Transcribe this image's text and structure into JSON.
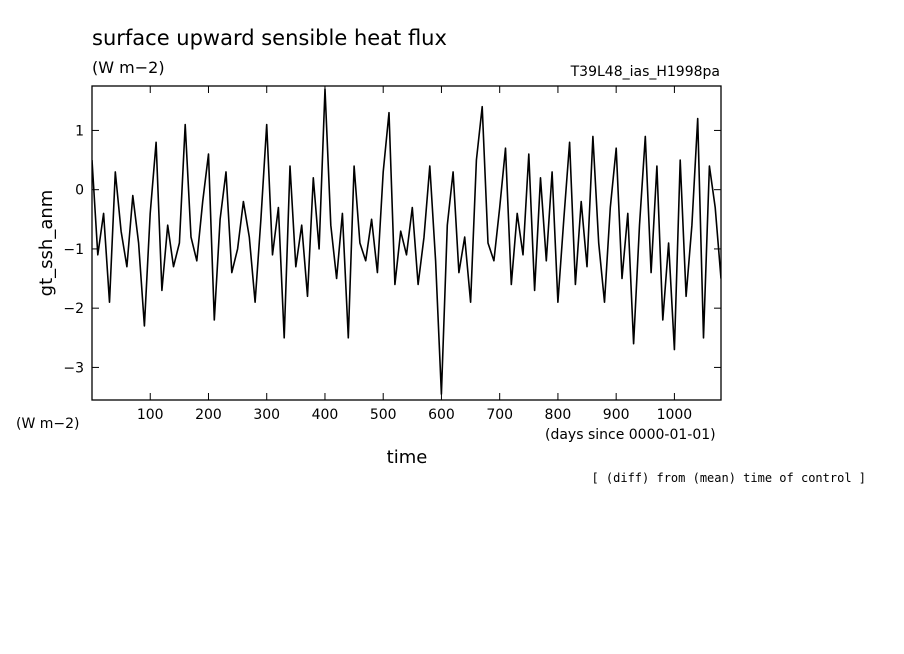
{
  "chart_data": {
    "type": "line",
    "title": "surface upward sensible heat flux",
    "units": "(W m−2)",
    "run_label": "T39L48_ias_H1998pa",
    "ylabel": "gt_ssh_anm",
    "ylabel_units": "(W m−2)",
    "xlabel": "time",
    "xlabel_units": "(days since 0000-01-01)",
    "footnote": "[ (diff) from (mean) time of control ]",
    "xlim": [
      0,
      1080
    ],
    "ylim": [
      -3.55,
      1.75
    ],
    "xticks": [
      100,
      200,
      300,
      400,
      500,
      600,
      700,
      800,
      900,
      1000
    ],
    "yticks": [
      1,
      0,
      -1,
      -2,
      -3
    ],
    "xtick_labels": [
      "100",
      "200",
      "300",
      "400",
      "500",
      "600",
      "700",
      "800",
      "900",
      "1000"
    ],
    "ytick_labels": [
      "1",
      "0",
      "−1",
      "−2",
      "−3"
    ],
    "grid": false,
    "series": [
      {
        "x": [
          0,
          10,
          20,
          30,
          40,
          50,
          60,
          70,
          80,
          90,
          100,
          110,
          120,
          130,
          140,
          150,
          160,
          170,
          180,
          190,
          200,
          210,
          220,
          230,
          240,
          250,
          260,
          270,
          280,
          290,
          300,
          310,
          320,
          330,
          340,
          350,
          360,
          370,
          380,
          390,
          400,
          410,
          420,
          430,
          440,
          450,
          460,
          470,
          480,
          490,
          500,
          510,
          520,
          530,
          540,
          550,
          560,
          570,
          580,
          590,
          600,
          610,
          620,
          630,
          640,
          650,
          660,
          670,
          680,
          690,
          700,
          710,
          720,
          730,
          740,
          750,
          760,
          770,
          780,
          790,
          800,
          810,
          820,
          830,
          840,
          850,
          860,
          870,
          880,
          890,
          900,
          910,
          920,
          930,
          940,
          950,
          960,
          970,
          980,
          990,
          1000,
          1010,
          1020,
          1030,
          1040,
          1050,
          1060,
          1070,
          1080
        ],
        "values": [
          0.5,
          -1.1,
          -0.4,
          -1.9,
          0.3,
          -0.7,
          -1.3,
          -0.1,
          -0.9,
          -2.3,
          -0.4,
          0.8,
          -1.7,
          -0.6,
          -1.3,
          -0.9,
          1.1,
          -0.8,
          -1.2,
          -0.2,
          0.6,
          -2.2,
          -0.5,
          0.3,
          -1.4,
          -1.0,
          -0.2,
          -0.8,
          -1.9,
          -0.5,
          1.1,
          -1.1,
          -0.3,
          -2.5,
          0.4,
          -1.3,
          -0.6,
          -1.8,
          0.2,
          -1.0,
          1.7,
          -0.6,
          -1.5,
          -0.4,
          -2.5,
          0.4,
          -0.9,
          -1.2,
          -0.5,
          -1.4,
          0.3,
          1.3,
          -1.6,
          -0.7,
          -1.1,
          -0.3,
          -1.6,
          -0.8,
          0.4,
          -1.2,
          -3.45,
          -0.6,
          0.3,
          -1.4,
          -0.8,
          -1.9,
          0.5,
          1.4,
          -0.9,
          -1.2,
          -0.3,
          0.7,
          -1.6,
          -0.4,
          -1.1,
          0.6,
          -1.7,
          0.2,
          -1.2,
          0.3,
          -1.9,
          -0.5,
          0.8,
          -1.6,
          -0.2,
          -1.3,
          0.9,
          -0.9,
          -1.9,
          -0.3,
          0.7,
          -1.5,
          -0.4,
          -2.6,
          -0.6,
          0.9,
          -1.4,
          0.4,
          -2.2,
          -0.9,
          -2.7,
          0.5,
          -1.8,
          -0.6,
          1.2,
          -2.5,
          0.4,
          -0.3,
          -1.5
        ]
      }
    ]
  }
}
